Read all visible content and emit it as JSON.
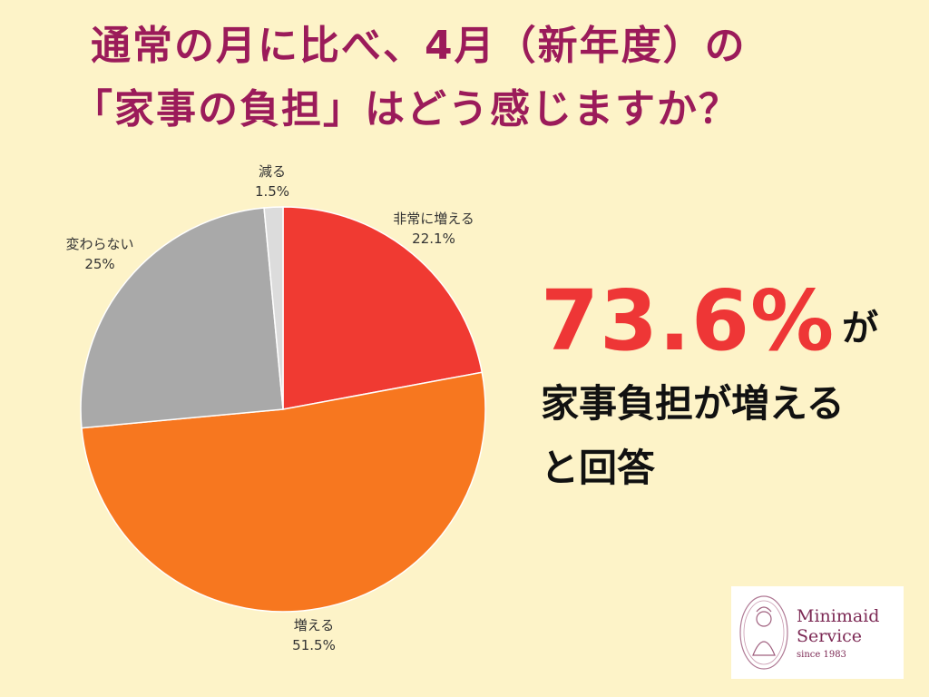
{
  "title": {
    "line1": "通常の月に比べ、4月（新年度）の",
    "line2": "「家事の負担」はどう感じますか？"
  },
  "callout": {
    "percent": "73.6%",
    "particle": "が",
    "line2": "家事負担が増える",
    "line3": "と回答"
  },
  "logo": {
    "name_line1": "Minimaid",
    "name_line2": "Service",
    "since": "since 1983"
  },
  "colors": {
    "background": "#fdf3c8",
    "title": "#9b1b5a",
    "highlight": "#ee3636"
  },
  "chart_data": {
    "type": "pie",
    "start_angle_deg": 0,
    "direction": "clockwise",
    "slices": [
      {
        "label": "非常に増える",
        "value": 22.1,
        "display": "22.1%",
        "color": "#f03a32"
      },
      {
        "label": "増える",
        "value": 51.5,
        "display": "51.5%",
        "color": "#f7771f"
      },
      {
        "label": "変わらない",
        "value": 25,
        "display": "25%",
        "color": "#a9a9a9"
      },
      {
        "label": "減る",
        "value": 1.5,
        "display": "1.5%",
        "color": "#dcdcdc"
      }
    ]
  }
}
